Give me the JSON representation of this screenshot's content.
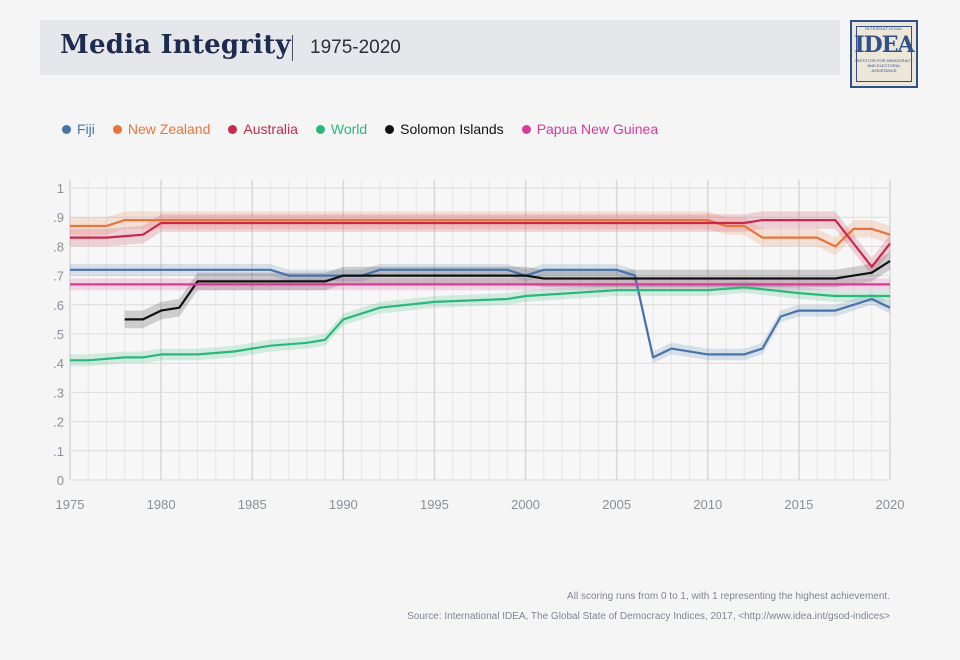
{
  "header": {
    "title": "Media Integrity",
    "subtitle": "1975-2020"
  },
  "logo": {
    "top_text": "INTERNATIONAL",
    "mark": "IDEA",
    "sub_text": "INSTITUTE FOR DEMOCRACY AND ELECTORAL ASSISTANCE",
    "color": "#2f4f8f"
  },
  "footer": {
    "note": "All scoring runs from 0 to 1, with 1 representing the highest achievement.",
    "source": "Source: International IDEA, The Global State of Democracy Indices, 2017, <http://www.idea.int/gsod-indices>"
  },
  "chart_data": {
    "type": "line",
    "x_range": [
      1975,
      2020
    ],
    "ylim": [
      0,
      1
    ],
    "x_ticks": [
      "1975",
      "1980",
      "1985",
      "1990",
      "1995",
      "2000",
      "2005",
      "2010",
      "2015",
      "2020"
    ],
    "y_ticks": [
      "0",
      ".1",
      ".2",
      ".3",
      ".4",
      ".5",
      ".6",
      ".7",
      ".8",
      ".9",
      "1"
    ],
    "grid": true,
    "legend_position": "top-left",
    "series": [
      {
        "name": "Fiji",
        "color": "#4a72a8",
        "band": 0.02,
        "points": [
          [
            1975,
            0.72
          ],
          [
            1980,
            0.72
          ],
          [
            1981,
            0.72
          ],
          [
            1986,
            0.72
          ],
          [
            1987,
            0.7
          ],
          [
            1990,
            0.7
          ],
          [
            1991,
            0.7
          ],
          [
            1992,
            0.72
          ],
          [
            1995,
            0.72
          ],
          [
            1999,
            0.72
          ],
          [
            2000,
            0.7
          ],
          [
            2001,
            0.72
          ],
          [
            2005,
            0.72
          ],
          [
            2006,
            0.7
          ],
          [
            2007,
            0.42
          ],
          [
            2008,
            0.45
          ],
          [
            2010,
            0.43
          ],
          [
            2012,
            0.43
          ],
          [
            2013,
            0.45
          ],
          [
            2014,
            0.56
          ],
          [
            2015,
            0.58
          ],
          [
            2017,
            0.58
          ],
          [
            2019,
            0.62
          ],
          [
            2020,
            0.59
          ]
        ]
      },
      {
        "name": "New Zealand",
        "color": "#e8743b",
        "band": 0.03,
        "points": [
          [
            1975,
            0.87
          ],
          [
            1977,
            0.87
          ],
          [
            1978,
            0.89
          ],
          [
            1985,
            0.89
          ],
          [
            1995,
            0.89
          ],
          [
            2000,
            0.89
          ],
          [
            2005,
            0.89
          ],
          [
            2010,
            0.89
          ],
          [
            2011,
            0.87
          ],
          [
            2012,
            0.87
          ],
          [
            2013,
            0.83
          ],
          [
            2016,
            0.83
          ],
          [
            2017,
            0.8
          ],
          [
            2018,
            0.86
          ],
          [
            2019,
            0.86
          ],
          [
            2020,
            0.84
          ]
        ]
      },
      {
        "name": "Australia",
        "color": "#c8284a",
        "band": 0.03,
        "points": [
          [
            1975,
            0.83
          ],
          [
            1977,
            0.83
          ],
          [
            1979,
            0.84
          ],
          [
            1980,
            0.88
          ],
          [
            1985,
            0.88
          ],
          [
            1990,
            0.88
          ],
          [
            1995,
            0.88
          ],
          [
            2000,
            0.88
          ],
          [
            2005,
            0.88
          ],
          [
            2010,
            0.88
          ],
          [
            2012,
            0.88
          ],
          [
            2013,
            0.89
          ],
          [
            2017,
            0.89
          ],
          [
            2018,
            0.81
          ],
          [
            2019,
            0.73
          ],
          [
            2020,
            0.81
          ]
        ]
      },
      {
        "name": "World",
        "color": "#2cb77a",
        "band": 0.02,
        "points": [
          [
            1975,
            0.41
          ],
          [
            1976,
            0.41
          ],
          [
            1978,
            0.42
          ],
          [
            1979,
            0.42
          ],
          [
            1980,
            0.43
          ],
          [
            1982,
            0.43
          ],
          [
            1984,
            0.44
          ],
          [
            1986,
            0.46
          ],
          [
            1988,
            0.47
          ],
          [
            1989,
            0.48
          ],
          [
            1990,
            0.55
          ],
          [
            1992,
            0.59
          ],
          [
            1995,
            0.61
          ],
          [
            1999,
            0.62
          ],
          [
            2000,
            0.63
          ],
          [
            2005,
            0.65
          ],
          [
            2010,
            0.65
          ],
          [
            2012,
            0.66
          ],
          [
            2015,
            0.64
          ],
          [
            2017,
            0.63
          ],
          [
            2020,
            0.63
          ]
        ]
      },
      {
        "name": "Solomon Islands",
        "color": "#111111",
        "band": 0.03,
        "points": [
          [
            1978,
            0.55
          ],
          [
            1979,
            0.55
          ],
          [
            1980,
            0.58
          ],
          [
            1981,
            0.59
          ],
          [
            1982,
            0.68
          ],
          [
            1989,
            0.68
          ],
          [
            1990,
            0.7
          ],
          [
            1995,
            0.7
          ],
          [
            2000,
            0.7
          ],
          [
            2001,
            0.69
          ],
          [
            2005,
            0.69
          ],
          [
            2010,
            0.69
          ],
          [
            2012,
            0.69
          ],
          [
            2017,
            0.69
          ],
          [
            2018,
            0.7
          ],
          [
            2019,
            0.71
          ],
          [
            2020,
            0.75
          ]
        ]
      },
      {
        "name": "Papua New Guinea",
        "color": "#d63c96",
        "band": 0.02,
        "points": [
          [
            1975,
            0.67
          ],
          [
            1980,
            0.67
          ],
          [
            1985,
            0.67
          ],
          [
            1990,
            0.67
          ],
          [
            1995,
            0.67
          ],
          [
            2000,
            0.67
          ],
          [
            2005,
            0.67
          ],
          [
            2010,
            0.67
          ],
          [
            2015,
            0.67
          ],
          [
            2020,
            0.67
          ]
        ]
      }
    ]
  }
}
